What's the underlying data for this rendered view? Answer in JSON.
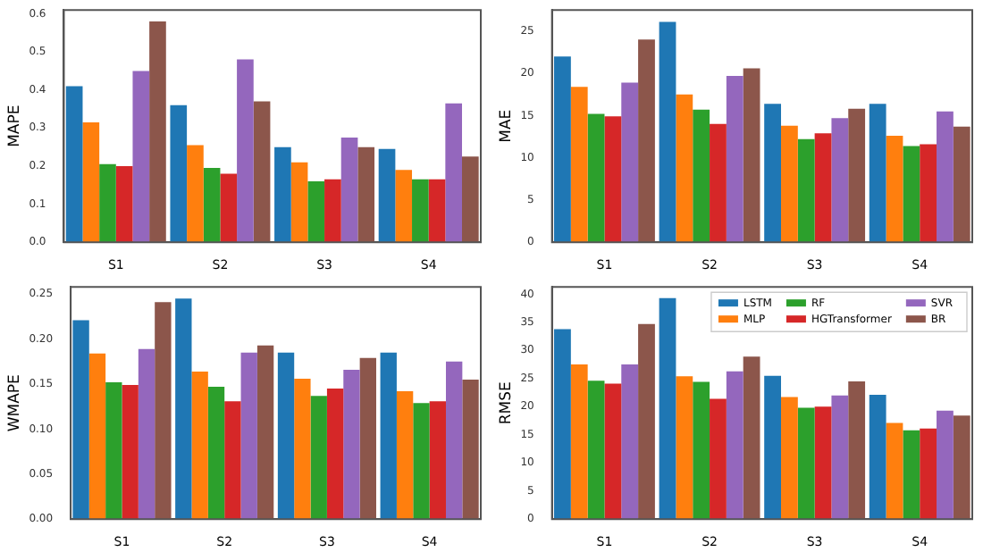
{
  "chart_data": [
    {
      "type": "bar",
      "ylabel": "MAPE",
      "categories": [
        "S1",
        "S2",
        "S3",
        "S4"
      ],
      "ylim": [
        0,
        0.61
      ],
      "yticks": [
        {
          "value": 0,
          "label": "0.0"
        },
        {
          "value": 0.1,
          "label": "0.1"
        },
        {
          "value": 0.2,
          "label": "0.2"
        },
        {
          "value": 0.3,
          "label": "0.3"
        },
        {
          "value": 0.4,
          "label": "0.4"
        },
        {
          "value": 0.5,
          "label": "0.5"
        },
        {
          "value": 0.6,
          "label": "0.6"
        }
      ],
      "grid": false,
      "legend": false,
      "series": [
        {
          "color": "#1f77b4",
          "values": [
            0.41,
            0.36,
            0.25,
            0.245
          ]
        },
        {
          "color": "#ff7f0e",
          "values": [
            0.315,
            0.255,
            0.21,
            0.19
          ]
        },
        {
          "color": "#2ca02c",
          "values": [
            0.205,
            0.195,
            0.16,
            0.165
          ]
        },
        {
          "color": "#d62728",
          "values": [
            0.2,
            0.18,
            0.165,
            0.165
          ]
        },
        {
          "color": "#9467bd",
          "values": [
            0.45,
            0.48,
            0.275,
            0.365
          ]
        },
        {
          "color": "#8c564b",
          "values": [
            0.58,
            0.37,
            0.25,
            0.225
          ]
        }
      ]
    },
    {
      "type": "bar",
      "ylabel": "MAE",
      "categories": [
        "S1",
        "S2",
        "S3",
        "S4"
      ],
      "ylim": [
        0,
        27.5
      ],
      "yticks": [
        0,
        5,
        10,
        15,
        20,
        25
      ],
      "grid": false,
      "legend": false,
      "series": [
        {
          "color": "#1f77b4",
          "values": [
            22,
            26.1,
            16.4,
            16.4
          ]
        },
        {
          "color": "#ff7f0e",
          "values": [
            18.4,
            17.5,
            13.8,
            12.6
          ]
        },
        {
          "color": "#2ca02c",
          "values": [
            15.2,
            15.7,
            12.2,
            11.4
          ]
        },
        {
          "color": "#d62728",
          "values": [
            14.9,
            14,
            12.9,
            11.6
          ]
        },
        {
          "color": "#9467bd",
          "values": [
            18.9,
            19.7,
            14.7,
            15.5
          ]
        },
        {
          "color": "#8c564b",
          "values": [
            24,
            20.6,
            15.8,
            13.7
          ]
        }
      ]
    },
    {
      "type": "bar",
      "ylabel": "WMAPE",
      "categories": [
        "S1",
        "S2",
        "S3",
        "S4"
      ],
      "ylim": [
        0,
        0.258
      ],
      "yticks": [
        {
          "value": 0,
          "label": "0.00"
        },
        {
          "value": 0.05,
          "label": "0.05"
        },
        {
          "value": 0.1,
          "label": "0.10"
        },
        {
          "value": 0.15,
          "label": "0.15"
        },
        {
          "value": 0.2,
          "label": "0.20"
        },
        {
          "value": 0.25,
          "label": "0.25"
        }
      ],
      "grid": false,
      "legend": false,
      "series": [
        {
          "color": "#1f77b4",
          "values": [
            0.221,
            0.245,
            0.185,
            0.185
          ]
        },
        {
          "color": "#ff7f0e",
          "values": [
            0.184,
            0.164,
            0.156,
            0.142
          ]
        },
        {
          "color": "#2ca02c",
          "values": [
            0.152,
            0.147,
            0.137,
            0.129
          ]
        },
        {
          "color": "#d62728",
          "values": [
            0.149,
            0.131,
            0.145,
            0.131
          ]
        },
        {
          "color": "#9467bd",
          "values": [
            0.189,
            0.185,
            0.166,
            0.175
          ]
        },
        {
          "color": "#8c564b",
          "values": [
            0.241,
            0.193,
            0.179,
            0.155
          ]
        }
      ]
    },
    {
      "type": "bar",
      "ylabel": "RMSE",
      "categories": [
        "S1",
        "S2",
        "S3",
        "S4"
      ],
      "ylim": [
        0,
        41.3
      ],
      "yticks": [
        0,
        5,
        10,
        15,
        20,
        25,
        30,
        35,
        40
      ],
      "grid": false,
      "legend": "top right",
      "series": [
        {
          "name": "LSTM",
          "color": "#1f77b4",
          "values": [
            33.8,
            39.3,
            25.5,
            22.1
          ]
        },
        {
          "name": "MLP",
          "color": "#ff7f0e",
          "values": [
            27.5,
            25.4,
            21.7,
            17.1
          ]
        },
        {
          "name": "RF",
          "color": "#2ca02c",
          "values": [
            24.6,
            24.4,
            19.8,
            15.8
          ]
        },
        {
          "name": "HGTransformer",
          "color": "#d62728",
          "values": [
            24.1,
            21.4,
            20,
            16.1
          ]
        },
        {
          "name": "SVR",
          "color": "#9467bd",
          "values": [
            27.5,
            26.3,
            22,
            19.3
          ]
        },
        {
          "name": "BR",
          "color": "#8c564b",
          "values": [
            34.7,
            28.9,
            24.5,
            18.4
          ]
        }
      ]
    }
  ]
}
